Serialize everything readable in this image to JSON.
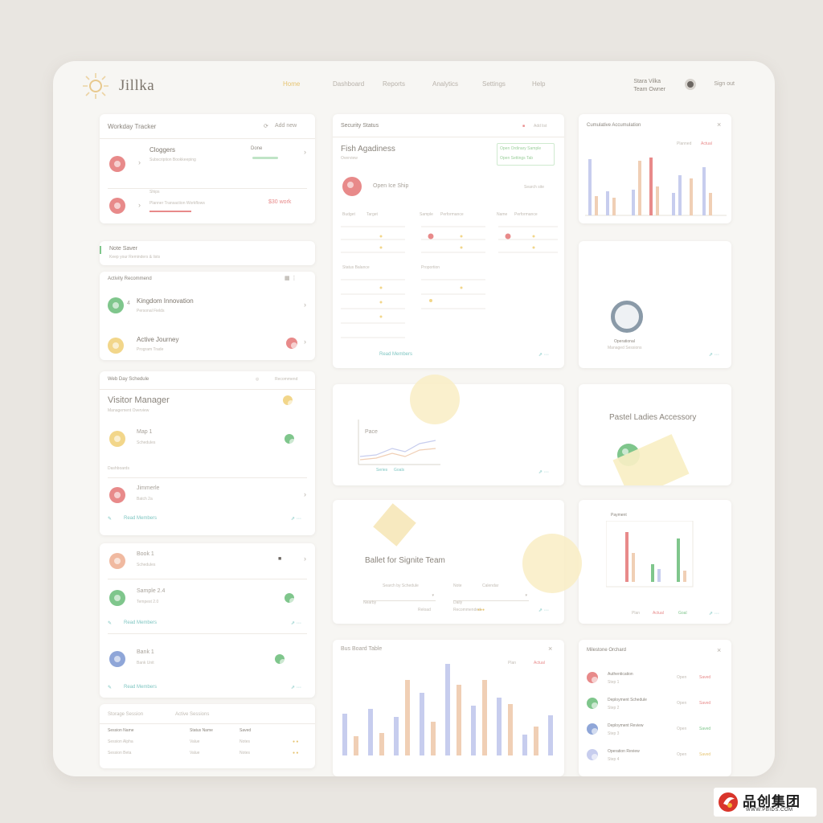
{
  "header": {
    "brand": "Jillka",
    "nav": [
      "Home",
      "Dashboard",
      "Reports",
      "Analytics",
      "Settings",
      "Help"
    ],
    "user_name": "Stara Vilka",
    "user_role": "Team Owner",
    "signout": "Sign out"
  },
  "left": {
    "c1": {
      "title": "Workday Tracker",
      "action": "Add new",
      "r1_title": "Cloggers",
      "r1_sub": "Subscription Bookkeeping",
      "r1_status": "Done",
      "r2_title": "Ships",
      "r2_sub": "Planner Transaction Workflows",
      "r2_badge": "$30 work"
    },
    "c2": {
      "title": "Note Saver",
      "sub": "Keep your Reminders & lists"
    },
    "c3": {
      "title": "Activity Recommend",
      "i1_title": "Kingdom Innovation",
      "i1_sub": "Personal Fields",
      "i2_title": "Active Journey",
      "i2_sub": "Program Trade"
    },
    "c4": {
      "title": "Web Day Schedule",
      "action": "Recommend",
      "heading": "Visitor Manager",
      "sub": "Management Overview",
      "i1_title": "Map 1",
      "i1_sub": "Schedules",
      "section": "Dashboards",
      "i2_title": "Jimmerle",
      "i2_sub": "Batch 2a",
      "link": "Read Members"
    },
    "c5": {
      "i1_title": "Book 1",
      "i1_sub": "Schedules",
      "i2_title": "Sample 2.4",
      "i2_sub": "Tempest 2.0",
      "link1": "Read Members",
      "i3_title": "Bank 1",
      "i3_sub": "Bank Unit",
      "link2": "Read Members"
    },
    "c6": {
      "title": "Storage Session",
      "tab": "Active Sessions",
      "cols": [
        "Session Name",
        "Status Name",
        "Saved"
      ],
      "rows": [
        [
          "Session Alpha",
          "Value",
          "Notes"
        ],
        [
          "Session Beta",
          "Value",
          "Notes"
        ]
      ]
    }
  },
  "middle": {
    "c1": {
      "title": "Security Status",
      "action": "Add list",
      "heading": "Fish Agadiness",
      "sub": "Overview",
      "tags": [
        "Open Ordinary Sample",
        "Open Settings Tab"
      ],
      "record": "Open Ice Ship",
      "record_side": "Search site",
      "col_labels": [
        "Budget",
        "Target",
        "Sample",
        "Performance",
        "Name",
        "Performance"
      ],
      "row_labels": [
        "Status Balance",
        "Proportion"
      ],
      "link": "Read Members"
    },
    "c2": {
      "label": "Pace",
      "legend": [
        "Series",
        "Goals"
      ]
    },
    "c3": {
      "title": "Ballet for Signite Team",
      "f1": "Search by Schedule",
      "f2": "Note",
      "f3": "Calendar",
      "s1": "Nearby",
      "s2": "Daily",
      "link": "Reload",
      "link2": "Recommended"
    },
    "c4": {
      "title": "Bus Board Table",
      "legend": [
        "Plan",
        "Actual"
      ]
    }
  },
  "right": {
    "c1": {
      "title": "Cumulative Accumulation",
      "legend": [
        "Planned",
        "Actual"
      ]
    },
    "c2": {
      "label": "Operational",
      "sub": "Managed Sessions"
    },
    "c3": {
      "title": "Pastel Ladies Accessory"
    },
    "c4": {
      "title": "Payment",
      "legend": [
        "Plan",
        "Actual",
        "Goal"
      ]
    },
    "c5": {
      "title": "Milestone Orchard",
      "items": [
        {
          "title": "Authentication",
          "sub": "Step 1",
          "tag": "Open",
          "stat": "Saved"
        },
        {
          "title": "Deployment Schedule",
          "sub": "Step 2",
          "tag": "Open",
          "stat": "Saved"
        },
        {
          "title": "Deployment Review",
          "sub": "Step 3",
          "tag": "Open",
          "stat": "Saved"
        },
        {
          "title": "Operation Review",
          "sub": "Step 4",
          "tag": "Open",
          "stat": "Saved"
        }
      ]
    }
  },
  "colors": {
    "red": "#e88a8a",
    "green": "#7fc68c",
    "yellow": "#f2d68a",
    "blue": "#8fa6d8",
    "teal": "#7fc6c2",
    "lavender": "#c7cdee",
    "peach": "#f0cfb5"
  },
  "watermark": {
    "name": "品创集团",
    "url": "WWW.PBIDS.COM"
  }
}
